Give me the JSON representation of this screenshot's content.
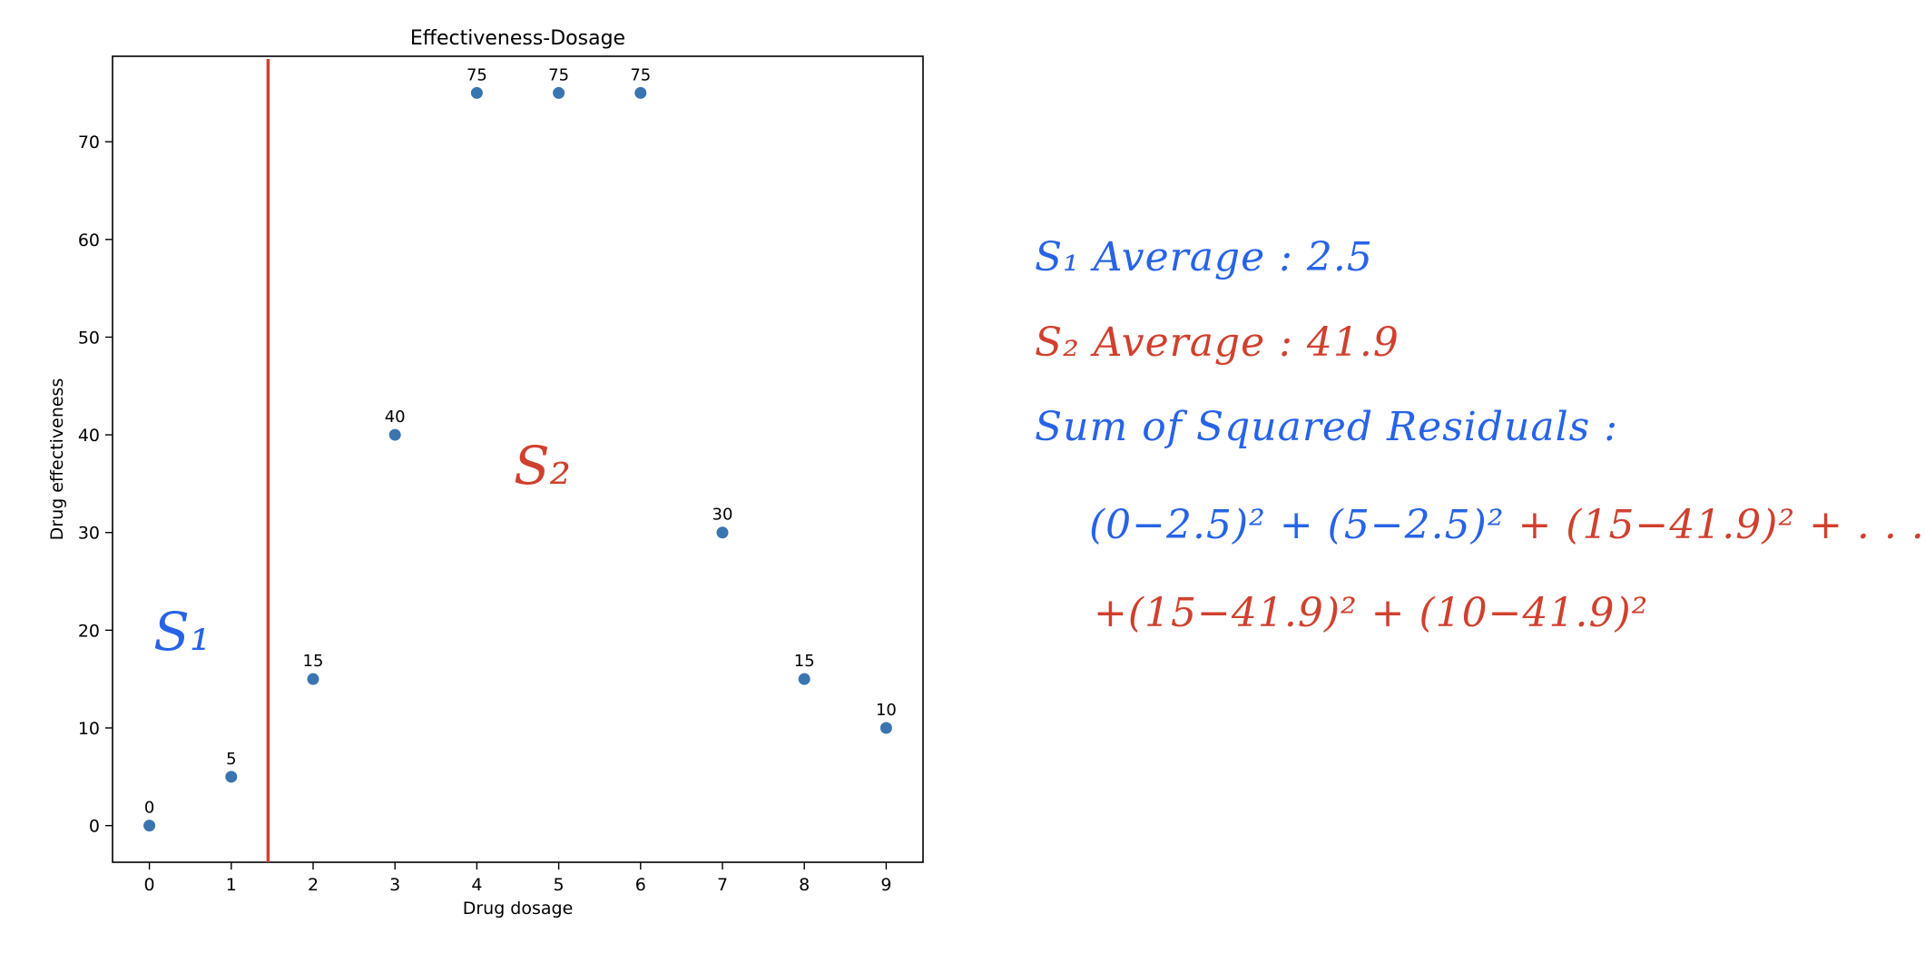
{
  "chart_data": {
    "type": "scatter",
    "title": "Effectiveness-Dosage",
    "xlabel": "Drug dosage",
    "ylabel": "Drug effectiveness",
    "x": [
      0,
      1,
      2,
      3,
      4,
      5,
      6,
      7,
      8,
      9
    ],
    "y": [
      0,
      5,
      15,
      40,
      75,
      75,
      75,
      30,
      15,
      10
    ],
    "data_labels": [
      "0",
      "5",
      "15",
      "40",
      "75",
      "75",
      "75",
      "30",
      "15",
      "10"
    ],
    "xticks": [
      "0",
      "1",
      "2",
      "3",
      "4",
      "5",
      "6",
      "7",
      "8",
      "9"
    ],
    "yticks": [
      "0",
      "10",
      "20",
      "30",
      "40",
      "50",
      "60",
      "70"
    ],
    "xlim": [
      -0.45,
      9.45
    ],
    "ylim": [
      -3.75,
      78.75
    ],
    "grid": false,
    "point_color": "#3a75b0",
    "split_line": {
      "x": 1.45,
      "color": "#d0402e"
    },
    "region_labels": [
      {
        "text": "S₁",
        "color": "#2763e6",
        "x": 0.05,
        "y": 18
      },
      {
        "text": "S₂",
        "color": "#d0402e",
        "x": 4.45,
        "y": 35
      }
    ]
  },
  "notes": {
    "s1_average": {
      "text": "S₁ Average : 2.5",
      "color": "#2763e6"
    },
    "s2_average": {
      "text": "S₂ Average : 41.9",
      "color": "#d0402e"
    },
    "ssr_title": {
      "text": "Sum of Squared Residuals :",
      "color": "#2763e6"
    },
    "ssr_line1_blue": {
      "text": "(0−2.5)² + (5−2.5)²",
      "color": "#2763e6"
    },
    "ssr_line1_red": {
      "text": " + (15−41.9)² + . . .",
      "color": "#d0402e"
    },
    "ssr_line2": {
      "text": "+(15−41.9)² + (10−41.9)²",
      "color": "#d0402e"
    }
  }
}
